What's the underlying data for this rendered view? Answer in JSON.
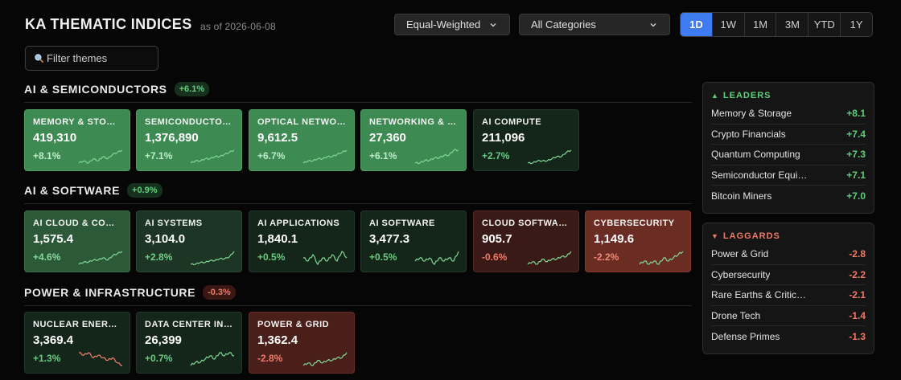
{
  "header": {
    "title": "KA THEMATIC INDICES",
    "as_of": "as of 2026-06-08"
  },
  "controls": {
    "weighting": "Equal-Weighted",
    "category": "All Categories",
    "periods": [
      "1D",
      "1W",
      "1M",
      "3M",
      "YTD",
      "1Y"
    ],
    "active_period": "1D",
    "filter_placeholder": "Filter themes",
    "search_icon": "search-icon"
  },
  "sections": [
    {
      "title": "AI & SEMICONDUCTORS",
      "change": "+6.1%",
      "direction": "up",
      "tiles": [
        {
          "name": "MEMORY & STORAGE",
          "display": "MEMORY & STOR…",
          "value": "419,310",
          "change": "+8.1%",
          "tone": "g1",
          "spark": [
            3,
            4,
            3,
            5,
            4,
            6,
            5,
            7,
            8,
            9
          ]
        },
        {
          "name": "SEMICONDUCTOR EQUIPMENT",
          "display": "SEMICONDUCTO…",
          "value": "1,376,890",
          "change": "+7.1%",
          "tone": "g1",
          "spark": [
            2,
            3,
            3,
            4,
            4,
            5,
            5,
            6,
            7,
            8
          ]
        },
        {
          "name": "OPTICAL NETWORKING",
          "display": "OPTICAL NETWO…",
          "value": "9,612.5",
          "change": "+6.7%",
          "tone": "g1",
          "spark": [
            3,
            4,
            4,
            5,
            5,
            6,
            6,
            7,
            8,
            9
          ]
        },
        {
          "name": "NETWORKING & INFRASTRUCTURE",
          "display": "NETWORKING & I…",
          "value": "27,360",
          "change": "+6.1%",
          "tone": "g1",
          "spark": [
            3,
            3,
            4,
            4,
            5,
            5,
            6,
            6,
            8,
            8
          ]
        },
        {
          "name": "AI COMPUTE",
          "display": "AI COMPUTE",
          "value": "211,096",
          "change": "+2.7%",
          "tone": "g4",
          "spark": [
            2,
            2,
            3,
            3,
            3,
            4,
            5,
            5,
            7,
            8
          ]
        }
      ]
    },
    {
      "title": "AI & SOFTWARE",
      "change": "+0.9%",
      "direction": "up",
      "tiles": [
        {
          "name": "AI CLOUD & COMPUTE",
          "display": "AI CLOUD & COM…",
          "value": "1,575.4",
          "change": "+4.6%",
          "tone": "g2",
          "spark": [
            2,
            3,
            3,
            4,
            4,
            5,
            4,
            6,
            7,
            8
          ]
        },
        {
          "name": "AI SYSTEMS",
          "display": "AI SYSTEMS",
          "value": "3,104.0",
          "change": "+2.8%",
          "tone": "g3",
          "spark": [
            2,
            2,
            3,
            3,
            4,
            4,
            5,
            5,
            6,
            9
          ]
        },
        {
          "name": "AI APPLICATIONS",
          "display": "AI APPLICATIONS",
          "value": "1,840.1",
          "change": "+0.5%",
          "tone": "g4",
          "spark": [
            5,
            4,
            6,
            3,
            5,
            4,
            6,
            4,
            7,
            5
          ]
        },
        {
          "name": "AI SOFTWARE",
          "display": "AI SOFTWARE",
          "value": "3,477.3",
          "change": "+0.5%",
          "tone": "g4",
          "spark": [
            4,
            5,
            4,
            5,
            3,
            5,
            4,
            5,
            4,
            7
          ]
        },
        {
          "name": "CLOUD SOFTWARE",
          "display": "CLOUD SOFTWARE",
          "value": "905.7",
          "change": "-0.6%",
          "tone": "r3",
          "spark": [
            3,
            4,
            3,
            5,
            4,
            5,
            5,
            6,
            6,
            8
          ]
        },
        {
          "name": "CYBERSECURITY",
          "display": "CYBERSECURITY",
          "value": "1,149.6",
          "change": "-2.2%",
          "tone": "r2",
          "spark": [
            3,
            4,
            3,
            4,
            3,
            5,
            4,
            5,
            6,
            7
          ]
        }
      ]
    },
    {
      "title": "POWER & INFRASTRUCTURE",
      "change": "-0.3%",
      "direction": "down",
      "tiles": [
        {
          "name": "NUCLEAR ENERGY",
          "display": "NUCLEAR ENERGY",
          "value": "3,369.4",
          "change": "+1.3%",
          "tone": "g4",
          "spark": [
            7,
            6,
            7,
            5,
            6,
            5,
            4,
            5,
            3,
            2
          ]
        },
        {
          "name": "DATA CENTER INFRASTRUCTURE",
          "display": "DATA CENTER IN…",
          "value": "26,399",
          "change": "+0.7%",
          "tone": "g4",
          "spark": [
            3,
            4,
            4,
            5,
            6,
            5,
            7,
            6,
            7,
            6
          ]
        },
        {
          "name": "POWER & GRID",
          "display": "POWER & GRID",
          "value": "1,362.4",
          "change": "-2.8%",
          "tone": "r1",
          "spark": [
            3,
            4,
            3,
            5,
            4,
            5,
            5,
            6,
            6,
            8
          ]
        }
      ]
    }
  ],
  "leaders": {
    "title": "LEADERS",
    "items": [
      {
        "name": "Memory & Storage",
        "value": "+8.1"
      },
      {
        "name": "Crypto Financials",
        "value": "+7.4"
      },
      {
        "name": "Quantum Computing",
        "value": "+7.3"
      },
      {
        "name": "Semiconductor Equi…",
        "value": "+7.1"
      },
      {
        "name": "Bitcoin Miners",
        "value": "+7.0"
      }
    ]
  },
  "laggards": {
    "title": "LAGGARDS",
    "items": [
      {
        "name": "Power & Grid",
        "value": "-2.8"
      },
      {
        "name": "Cybersecurity",
        "value": "-2.2"
      },
      {
        "name": "Rare Earths & Critic…",
        "value": "-2.1"
      },
      {
        "name": "Drone Tech",
        "value": "-1.4"
      },
      {
        "name": "Defense Primes",
        "value": "-1.3"
      }
    ]
  },
  "colors": {
    "accent": "#3f7cf2",
    "up": "#5fcf7a",
    "down": "#f07a66",
    "spark_up": "#7ed892",
    "spark_down": "#f0836d"
  }
}
